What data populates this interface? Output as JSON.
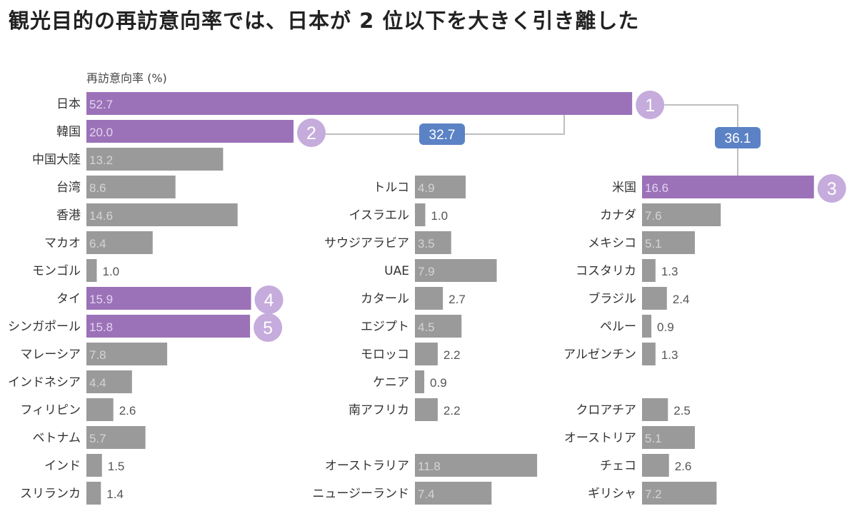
{
  "title": "観光目的の再訪意向率では、日本が 2 位以下を大きく引き離した",
  "chart_data": {
    "type": "bar",
    "title": "観光目的の再訪意向率では、日本が 2 位以下を大きく引き離した",
    "ylabel": "再訪意向率 (%)",
    "colors": {
      "highlight": "#9b72b8",
      "default": "#9a9a9a",
      "rank_circle": "#c5acdc",
      "diff_label": "#5b82c4"
    },
    "groups": [
      {
        "categories": [
          "日本",
          "韓国",
          "中国大陸",
          "台湾",
          "香港",
          "マカオ",
          "モンゴル",
          "タイ",
          "シンガポール",
          "マレーシア",
          "インドネシア",
          "フィリピン",
          "ベトナム",
          "インド",
          "スリランカ"
        ],
        "values": [
          52.7,
          20.0,
          13.2,
          8.6,
          14.6,
          6.4,
          1.0,
          15.9,
          15.8,
          7.8,
          4.4,
          2.6,
          5.7,
          1.5,
          1.4
        ]
      },
      {
        "categories": [
          "トルコ",
          "イスラエル",
          "サウジアラビア",
          "UAE",
          "カタール",
          "エジプト",
          "モロッコ",
          "ケニア",
          "南アフリカ"
        ],
        "values": [
          4.9,
          1.0,
          3.5,
          7.9,
          2.7,
          4.5,
          2.2,
          0.9,
          2.2
        ]
      },
      {
        "categories": [
          "オーストラリア",
          "ニュージーランド"
        ],
        "values": [
          11.8,
          7.4
        ]
      },
      {
        "categories": [
          "米国",
          "カナダ",
          "メキシコ",
          "コスタリカ",
          "ブラジル",
          "ペルー",
          "アルゼンチン"
        ],
        "values": [
          16.6,
          7.6,
          5.1,
          1.3,
          2.4,
          0.9,
          1.3
        ]
      },
      {
        "categories": [
          "クロアチア",
          "オーストリア",
          "チェコ",
          "ギリシャ"
        ],
        "values": [
          2.5,
          5.1,
          2.6,
          7.2
        ]
      }
    ],
    "ranks": [
      {
        "category": "日本",
        "rank": "1"
      },
      {
        "category": "韓国",
        "rank": "2"
      },
      {
        "category": "米国",
        "rank": "3"
      },
      {
        "category": "タイ",
        "rank": "4"
      },
      {
        "category": "シンガポール",
        "rank": "5"
      }
    ],
    "annotations": [
      {
        "label": "32.7",
        "between": [
          "日本",
          "韓国"
        ]
      },
      {
        "label": "36.1",
        "between": [
          "日本",
          "米国"
        ]
      }
    ]
  }
}
